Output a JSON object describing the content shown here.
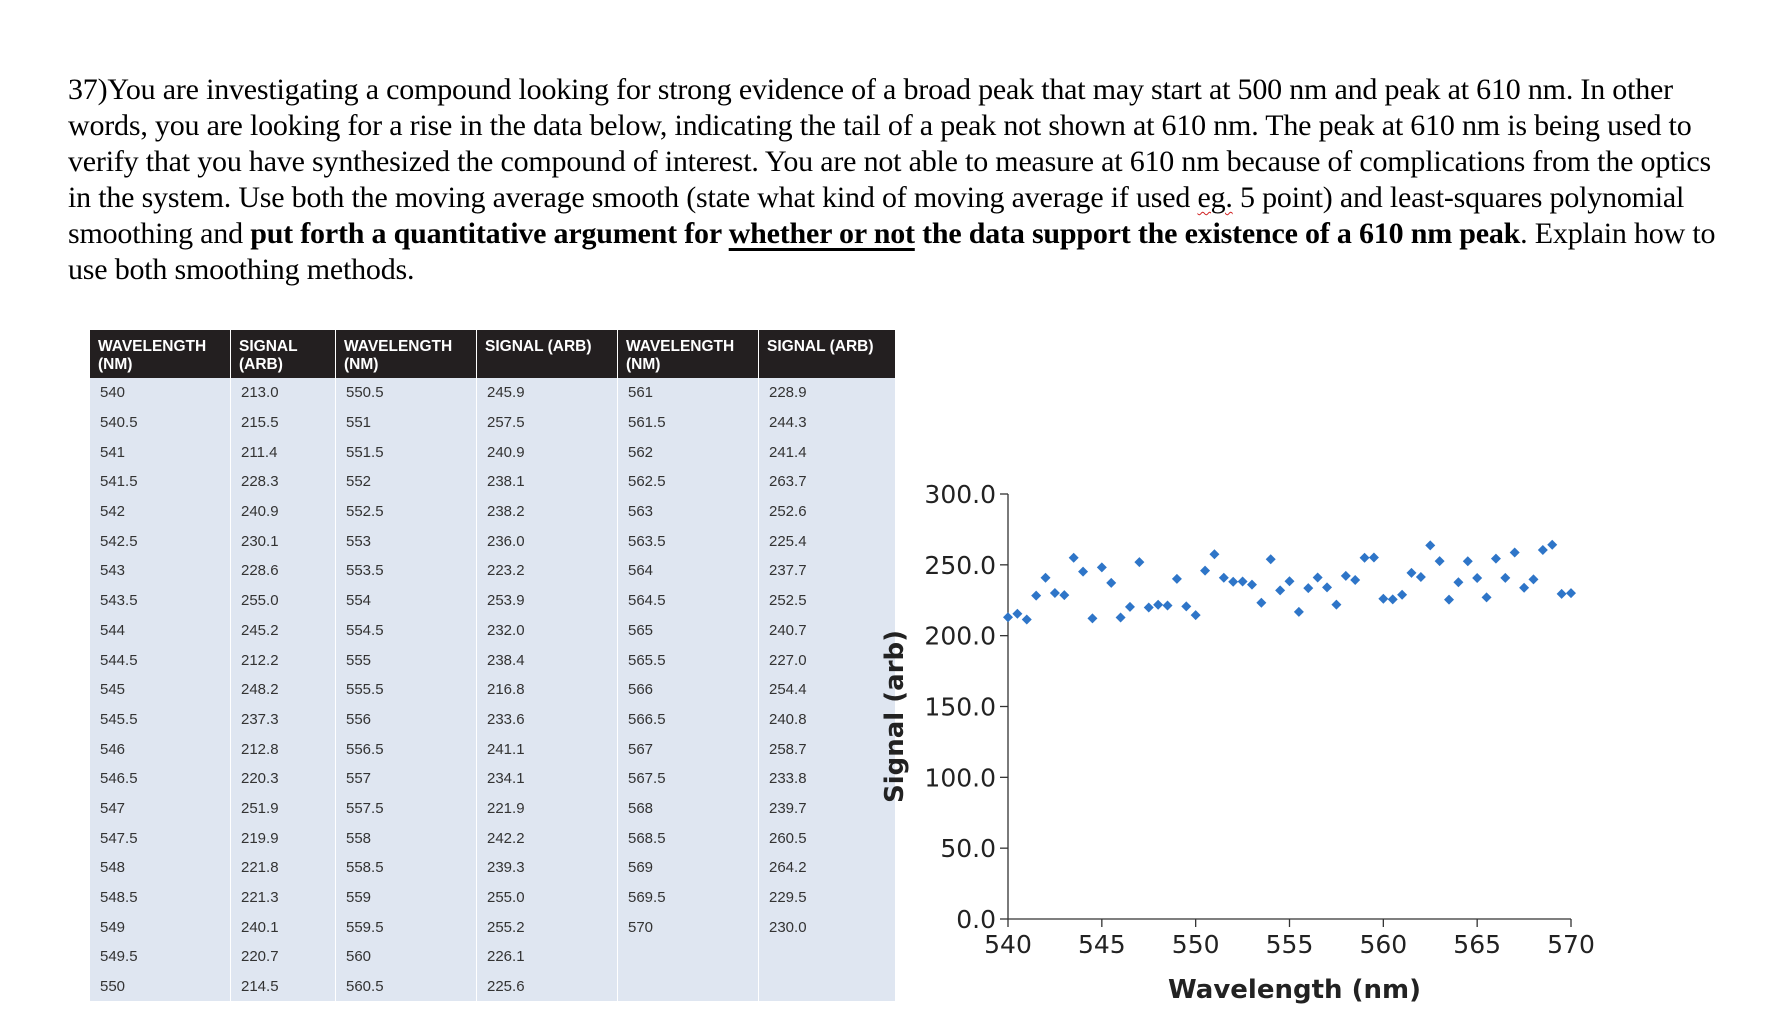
{
  "question": {
    "p1": "37)You are investigating a compound looking for strong evidence of a broad peak that may start at 500 nm and peak at 610 nm. In other words, you are looking for a rise in the data below, indicating the tail of a peak not shown at 610 nm. The peak at 610 nm is being used to verify that you have synthesized the compound of interest. You are not able to measure at 610 nm because of complications from the optics in the system. Use both the moving average smooth (state what kind of moving average if used ",
    "eg": "eg.",
    "p2": " 5 point) and least-squares polynomial smoothing and ",
    "b1": "put forth a quantitative argument for ",
    "b_underlined": "whether or not",
    "b2": " the data support the existence of a 610 nm peak",
    "p3": ". Explain how to use both smoothing methods."
  },
  "table": {
    "headers": [
      [
        "WAVELENGTH",
        "(NM)"
      ],
      [
        "SIGNAL",
        "(ARB)"
      ],
      [
        "WAVELENGTH",
        "(NM)"
      ],
      [
        "SIGNAL (ARB)",
        ""
      ],
      [
        "WAVELENGTH",
        "(NM)"
      ],
      [
        "SIGNAL (ARB)",
        ""
      ]
    ],
    "rows": [
      [
        "540",
        "213.0",
        "550.5",
        "245.9",
        "561",
        "228.9"
      ],
      [
        "540.5",
        "215.5",
        "551",
        "257.5",
        "561.5",
        "244.3"
      ],
      [
        "541",
        "211.4",
        "551.5",
        "240.9",
        "562",
        "241.4"
      ],
      [
        "541.5",
        "228.3",
        "552",
        "238.1",
        "562.5",
        "263.7"
      ],
      [
        "542",
        "240.9",
        "552.5",
        "238.2",
        "563",
        "252.6"
      ],
      [
        "542.5",
        "230.1",
        "553",
        "236.0",
        "563.5",
        "225.4"
      ],
      [
        "543",
        "228.6",
        "553.5",
        "223.2",
        "564",
        "237.7"
      ],
      [
        "543.5",
        "255.0",
        "554",
        "253.9",
        "564.5",
        "252.5"
      ],
      [
        "544",
        "245.2",
        "554.5",
        "232.0",
        "565",
        "240.7"
      ],
      [
        "544.5",
        "212.2",
        "555",
        "238.4",
        "565.5",
        "227.0"
      ],
      [
        "545",
        "248.2",
        "555.5",
        "216.8",
        "566",
        "254.4"
      ],
      [
        "545.5",
        "237.3",
        "556",
        "233.6",
        "566.5",
        "240.8"
      ],
      [
        "546",
        "212.8",
        "556.5",
        "241.1",
        "567",
        "258.7"
      ],
      [
        "546.5",
        "220.3",
        "557",
        "234.1",
        "567.5",
        "233.8"
      ],
      [
        "547",
        "251.9",
        "557.5",
        "221.9",
        "568",
        "239.7"
      ],
      [
        "547.5",
        "219.9",
        "558",
        "242.2",
        "568.5",
        "260.5"
      ],
      [
        "548",
        "221.8",
        "558.5",
        "239.3",
        "569",
        "264.2"
      ],
      [
        "548.5",
        "221.3",
        "559",
        "255.0",
        "569.5",
        "229.5"
      ],
      [
        "549",
        "240.1",
        "559.5",
        "255.2",
        "570",
        "230.0"
      ],
      [
        "549.5",
        "220.7",
        "560",
        "226.1",
        "",
        ""
      ],
      [
        "550",
        "214.5",
        "560.5",
        "225.6",
        "",
        ""
      ]
    ]
  },
  "chart_data": {
    "type": "scatter",
    "title": "",
    "xlabel": "Wavelength (nm)",
    "ylabel": "Signal (arb)",
    "xlim": [
      540,
      570
    ],
    "ylim": [
      0,
      300
    ],
    "xticks": [
      "540",
      "545",
      "550",
      "555",
      "560",
      "565",
      "570"
    ],
    "yticks": [
      "0.0",
      "50.0",
      "100.0",
      "150.0",
      "200.0",
      "250.0",
      "300.0"
    ],
    "marker_color": "#2e75c8",
    "x": [
      540,
      540.5,
      541,
      541.5,
      542,
      542.5,
      543,
      543.5,
      544,
      544.5,
      545,
      545.5,
      546,
      546.5,
      547,
      547.5,
      548,
      548.5,
      549,
      549.5,
      550,
      550.5,
      551,
      551.5,
      552,
      552.5,
      553,
      553.5,
      554,
      554.5,
      555,
      555.5,
      556,
      556.5,
      557,
      557.5,
      558,
      558.5,
      559,
      559.5,
      560,
      560.5,
      561,
      561.5,
      562,
      562.5,
      563,
      563.5,
      564,
      564.5,
      565,
      565.5,
      566,
      566.5,
      567,
      567.5,
      568,
      568.5,
      569,
      569.5,
      570
    ],
    "y": [
      213.0,
      215.5,
      211.4,
      228.3,
      240.9,
      230.1,
      228.6,
      255.0,
      245.2,
      212.2,
      248.2,
      237.3,
      212.8,
      220.3,
      251.9,
      219.9,
      221.8,
      221.3,
      240.1,
      220.7,
      214.5,
      245.9,
      257.5,
      240.9,
      238.1,
      238.2,
      236.0,
      223.2,
      253.9,
      232.0,
      238.4,
      216.8,
      233.6,
      241.1,
      234.1,
      221.9,
      242.2,
      239.3,
      255.0,
      255.2,
      226.1,
      225.6,
      228.9,
      244.3,
      241.4,
      263.7,
      252.6,
      225.4,
      237.7,
      252.5,
      240.7,
      227.0,
      254.4,
      240.8,
      258.7,
      233.8,
      239.7,
      260.5,
      264.2,
      229.5,
      230.0
    ]
  }
}
